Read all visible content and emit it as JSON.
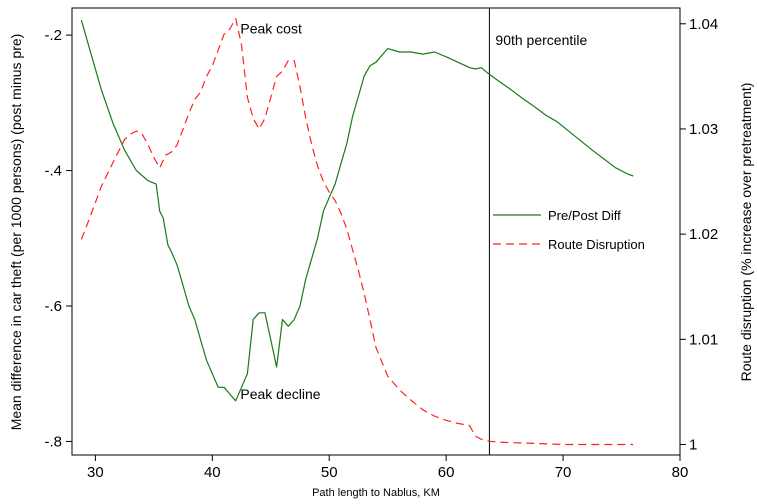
{
  "chart_data": {
    "type": "line",
    "xlabel": "Path length to Nablus, KM",
    "ylabel_left": "Mean difference in car theft (per 1000 persons) (post minus pre)",
    "ylabel_right": "Route disruption (% increase over pretreatment)",
    "xlim": [
      28,
      80
    ],
    "ylim_left": [
      -0.82,
      -0.16
    ],
    "ylim_right": [
      0.999,
      1.0415
    ],
    "x_ticks": [
      30,
      40,
      50,
      60,
      70,
      80
    ],
    "x_tick_labels": [
      "30",
      "40",
      "50",
      "60",
      "70",
      "80"
    ],
    "y_left_ticks": [
      -0.2,
      -0.4,
      -0.6,
      -0.8
    ],
    "y_left_tick_labels": [
      "-.2",
      "-.4",
      "-.6",
      "-.8"
    ],
    "y_right_ticks": [
      1.0,
      1.01,
      1.02,
      1.03,
      1.04
    ],
    "y_right_tick_labels": [
      "1",
      "1.01",
      "1.02",
      "1.03",
      "1.04"
    ],
    "grid": false,
    "legend_position": "right",
    "series": [
      {
        "name": "Pre/Post Diff",
        "axis": "left",
        "color": "#1a7a1a",
        "dash": "solid",
        "x": [
          28.8,
          29.5,
          30.5,
          31.5,
          32.5,
          33.5,
          34.5,
          35.2,
          35.5,
          35.8,
          36.2,
          36.5,
          37.0,
          37.5,
          38.0,
          38.5,
          39.0,
          39.5,
          40.0,
          40.5,
          41.0,
          41.5,
          42.0,
          42.5,
          43.0,
          43.5,
          44.0,
          44.5,
          45.0,
          45.5,
          46.0,
          46.5,
          47.0,
          47.5,
          48.0,
          48.5,
          49.0,
          49.5,
          50.0,
          50.5,
          51.0,
          51.5,
          52.0,
          52.5,
          53.0,
          53.5,
          54.0,
          54.5,
          55.0,
          56.0,
          57.0,
          58.0,
          59.0,
          60.0,
          61.0,
          62.0,
          62.5,
          63.0,
          63.7,
          64.5,
          65.5,
          66.5,
          67.5,
          68.5,
          69.5,
          70.5,
          71.5,
          72.5,
          73.5,
          74.5,
          75.5,
          76.0
        ],
        "y": [
          -0.178,
          -0.22,
          -0.28,
          -0.33,
          -0.37,
          -0.4,
          -0.415,
          -0.42,
          -0.46,
          -0.47,
          -0.51,
          -0.52,
          -0.54,
          -0.57,
          -0.6,
          -0.62,
          -0.65,
          -0.68,
          -0.7,
          -0.72,
          -0.72,
          -0.73,
          -0.74,
          -0.72,
          -0.7,
          -0.62,
          -0.61,
          -0.61,
          -0.65,
          -0.69,
          -0.62,
          -0.63,
          -0.62,
          -0.6,
          -0.56,
          -0.53,
          -0.5,
          -0.46,
          -0.44,
          -0.42,
          -0.39,
          -0.36,
          -0.32,
          -0.29,
          -0.26,
          -0.245,
          -0.24,
          -0.23,
          -0.22,
          -0.225,
          -0.225,
          -0.228,
          -0.225,
          -0.232,
          -0.24,
          -0.248,
          -0.25,
          -0.248,
          -0.258,
          -0.268,
          -0.28,
          -0.293,
          -0.305,
          -0.318,
          -0.328,
          -0.342,
          -0.356,
          -0.37,
          -0.383,
          -0.396,
          -0.405,
          -0.408
        ]
      },
      {
        "name": "Route Disruption",
        "axis": "right",
        "color": "#ff2222",
        "dash": "8,5",
        "x": [
          28.8,
          29.5,
          30.5,
          31.5,
          32.5,
          33.0,
          33.5,
          34.0,
          34.5,
          35.0,
          35.5,
          36.0,
          36.5,
          37.0,
          37.5,
          38.0,
          38.5,
          39.0,
          39.5,
          40.0,
          40.5,
          41.0,
          41.5,
          42.0,
          42.5,
          43.0,
          43.5,
          44.0,
          44.5,
          45.0,
          45.5,
          46.0,
          46.5,
          47.0,
          47.5,
          48.0,
          48.5,
          49.0,
          49.5,
          50.0,
          50.5,
          51.0,
          51.5,
          52.0,
          52.5,
          53.0,
          53.5,
          54.0,
          55.0,
          56.0,
          57.0,
          58.0,
          59.0,
          60.0,
          61.0,
          62.0,
          62.5,
          63.0,
          63.7,
          65.0,
          67.5,
          70.0,
          72.5,
          76.0
        ],
        "y": [
          1.0195,
          1.0215,
          1.0245,
          1.0268,
          1.029,
          1.0295,
          1.0298,
          1.0295,
          1.0285,
          1.0273,
          1.0263,
          1.0275,
          1.0278,
          1.0285,
          1.03,
          1.0315,
          1.0328,
          1.0335,
          1.035,
          1.036,
          1.0375,
          1.039,
          1.0395,
          1.0405,
          1.038,
          1.033,
          1.031,
          1.03,
          1.031,
          1.033,
          1.035,
          1.0355,
          1.0365,
          1.0365,
          1.034,
          1.031,
          1.0285,
          1.0265,
          1.025,
          1.024,
          1.0232,
          1.022,
          1.0205,
          1.0185,
          1.0165,
          1.0143,
          1.0118,
          1.0092,
          1.0065,
          1.0052,
          1.0042,
          1.0033,
          1.0027,
          1.0023,
          1.002,
          1.0018,
          1.0008,
          1.0005,
          1.0003,
          1.0002,
          1.0001,
          1.0,
          1.0,
          1.0
        ]
      }
    ],
    "reference_line": {
      "x": 63.7,
      "label": "90th percentile"
    },
    "annotations": [
      {
        "text": "Peak cost",
        "x": 42.4,
        "y_left": -0.19
      },
      {
        "text": "Peak decline",
        "x": 42.4,
        "y_left": -0.73
      }
    ]
  }
}
